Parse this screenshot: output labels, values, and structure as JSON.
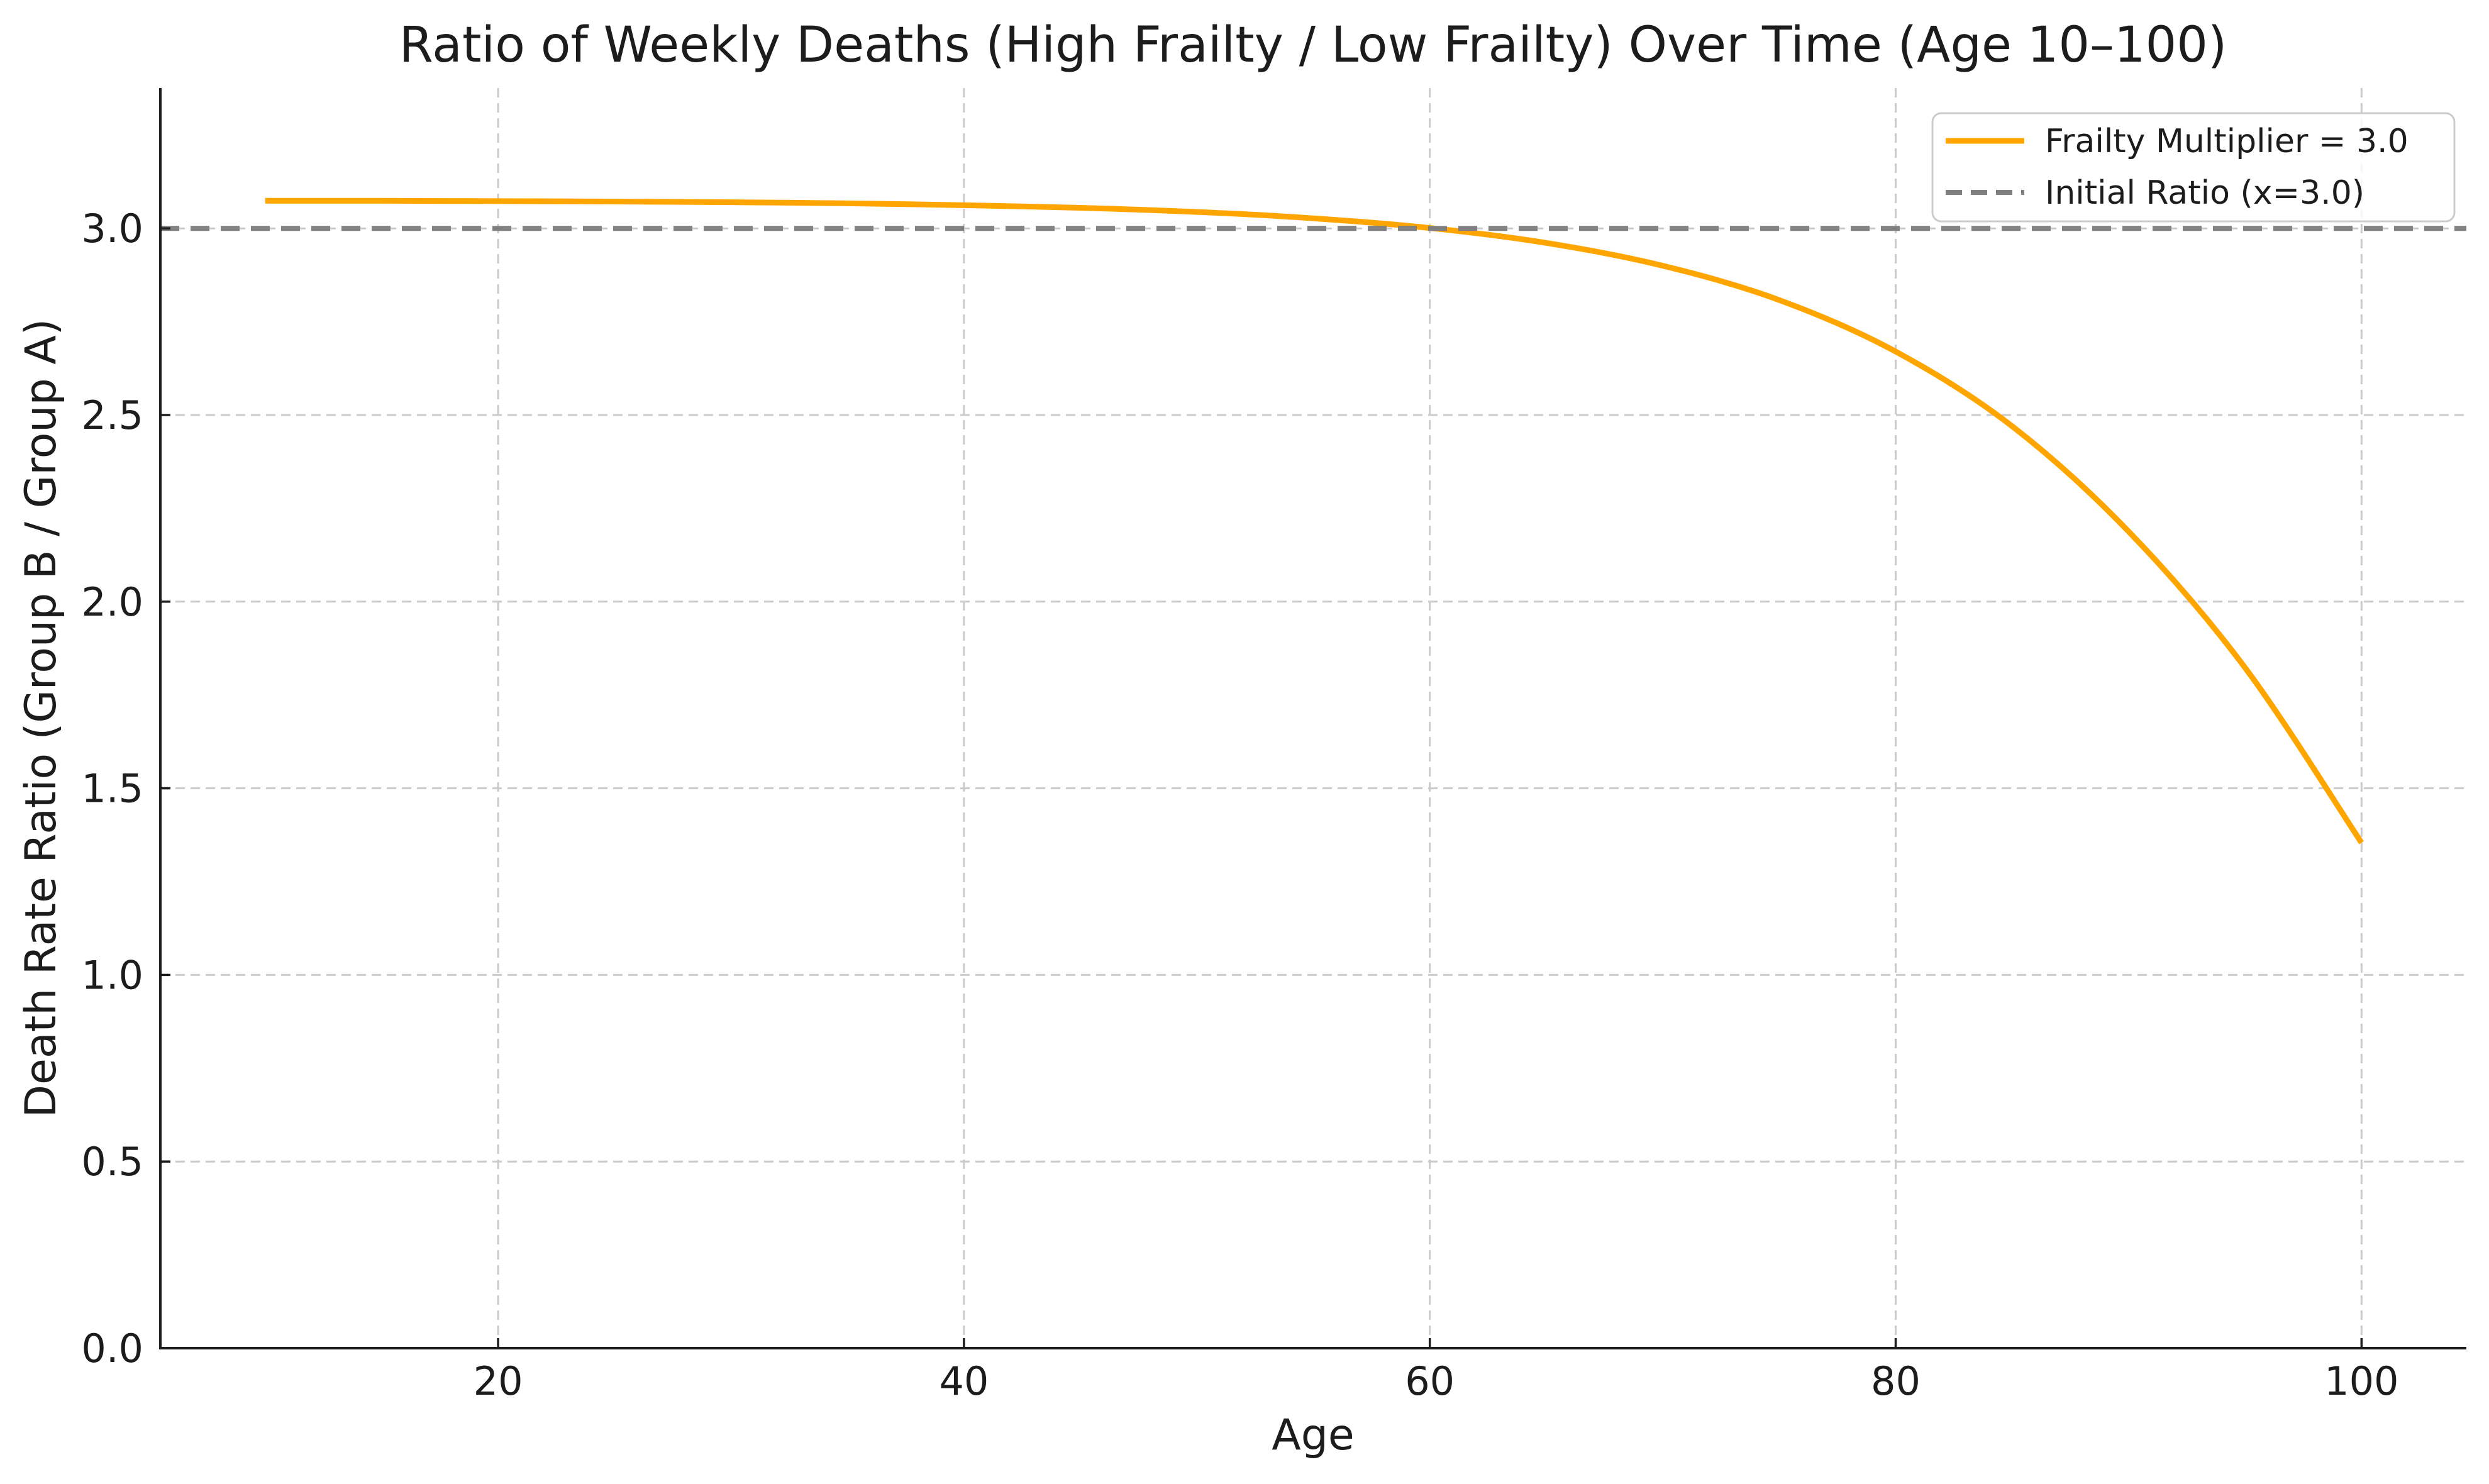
{
  "title": "Ratio of Weekly Deaths (High Frailty / Low Frailty) Over Time (Age 10–100)",
  "colors": {
    "series_line": "#FFA500",
    "initial_ratio_line": "#808080",
    "gridline": "#CBCBCB",
    "axis": "#1c1c1c",
    "text": "#1c1c1c",
    "legend_border": "#CCCCCC",
    "legend_background": "#FFFFFF"
  },
  "chart_data": {
    "type": "line",
    "title": "Ratio of Weekly Deaths (High Frailty / Low Frailty) Over Time (Age 10–100)",
    "xlabel": "Age",
    "ylabel": "Death Rate Ratio (Group B / Group A)",
    "xlim": [
      5.5,
      104.5
    ],
    "ylim": [
      0,
      3.376
    ],
    "xticks": [
      20,
      40,
      60,
      80,
      100
    ],
    "xtick_labels": [
      "20",
      "40",
      "60",
      "80",
      "100"
    ],
    "yticks": [
      0.0,
      0.5,
      1.0,
      1.5,
      2.0,
      2.5,
      3.0
    ],
    "ytick_labels": [
      "0.0",
      "0.5",
      "1.0",
      "1.5",
      "2.0",
      "2.5",
      "3.0"
    ],
    "grid": true,
    "grid_style": "dashed",
    "legend_position": "upper right",
    "series": [
      {
        "name": "Frailty Multiplier = 3.0",
        "style": "solid",
        "color": "#FFA500",
        "x": [
          10,
          15,
          20,
          25,
          30,
          35,
          40,
          45,
          50,
          55,
          60,
          65,
          70,
          75,
          80,
          85,
          90,
          95,
          100
        ],
        "y": [
          3.074,
          3.074,
          3.073,
          3.072,
          3.07,
          3.067,
          3.062,
          3.055,
          3.044,
          3.027,
          3.001,
          2.961,
          2.9,
          2.808,
          2.67,
          2.47,
          2.188,
          1.823,
          1.354
        ]
      },
      {
        "name": "Initial Ratio (x=3.0)",
        "style": "dashed",
        "color": "#808080",
        "y_const": 3.0
      }
    ]
  }
}
